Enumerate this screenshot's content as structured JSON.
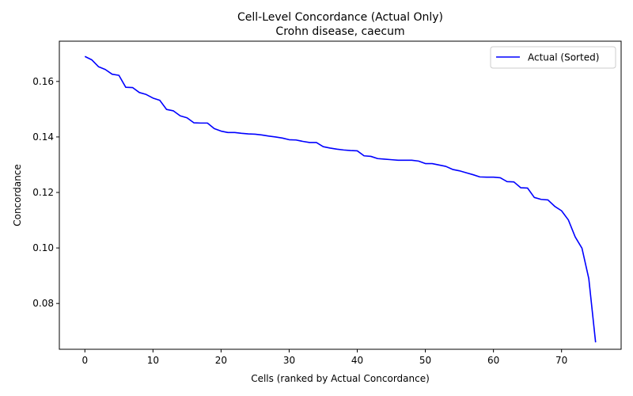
{
  "chart_data": {
    "type": "line",
    "title": "Cell-Level Concordance (Actual Only)",
    "subtitle": "Crohn disease, caecum",
    "xlabel": "Cells (ranked by Actual Concordance)",
    "ylabel": "Concordance",
    "xlim": [
      -3.75,
      78.75
    ],
    "ylim": [
      0.0635,
      0.1745
    ],
    "xticks": [
      0,
      10,
      20,
      30,
      40,
      50,
      60,
      70
    ],
    "yticks": [
      0.08,
      0.1,
      0.12,
      0.14,
      0.16
    ],
    "ytick_labels": [
      "0.08",
      "0.10",
      "0.12",
      "0.14",
      "0.16"
    ],
    "grid": false,
    "legend": {
      "placement": "top-right"
    },
    "series": [
      {
        "name": "Actual (Sorted)",
        "color": "#0000ff",
        "x": [
          0,
          1,
          2,
          3,
          4,
          5,
          6,
          7,
          8,
          9,
          10,
          11,
          12,
          13,
          14,
          15,
          16,
          17,
          18,
          19,
          20,
          21,
          22,
          23,
          24,
          25,
          26,
          27,
          28,
          29,
          30,
          31,
          32,
          33,
          34,
          35,
          36,
          37,
          38,
          39,
          40,
          41,
          42,
          43,
          44,
          45,
          46,
          47,
          48,
          49,
          50,
          51,
          52,
          53,
          54,
          55,
          56,
          57,
          58,
          59,
          60,
          61,
          62,
          63,
          64,
          65,
          66,
          67,
          68,
          69,
          70,
          71,
          72,
          73,
          74,
          75
        ],
        "y": [
          0.169,
          0.1678,
          0.1653,
          0.1643,
          0.1626,
          0.1622,
          0.1579,
          0.1578,
          0.156,
          0.1553,
          0.154,
          0.1532,
          0.1499,
          0.1494,
          0.1476,
          0.1469,
          0.1451,
          0.145,
          0.145,
          0.143,
          0.1421,
          0.1416,
          0.1416,
          0.1413,
          0.1411,
          0.141,
          0.1407,
          0.1403,
          0.14,
          0.1396,
          0.139,
          0.1389,
          0.1384,
          0.138,
          0.138,
          0.1365,
          0.136,
          0.1356,
          0.1353,
          0.1351,
          0.135,
          0.1332,
          0.133,
          0.1322,
          0.132,
          0.1318,
          0.1316,
          0.1316,
          0.1316,
          0.1313,
          0.1304,
          0.1304,
          0.1299,
          0.1294,
          0.1283,
          0.1278,
          0.1271,
          0.1264,
          0.1256,
          0.1255,
          0.1255,
          0.1253,
          0.1239,
          0.1238,
          0.1217,
          0.1216,
          0.1182,
          0.1175,
          0.1173,
          0.115,
          0.1134,
          0.1101,
          0.104,
          0.0999,
          0.089,
          0.066
        ]
      }
    ]
  }
}
